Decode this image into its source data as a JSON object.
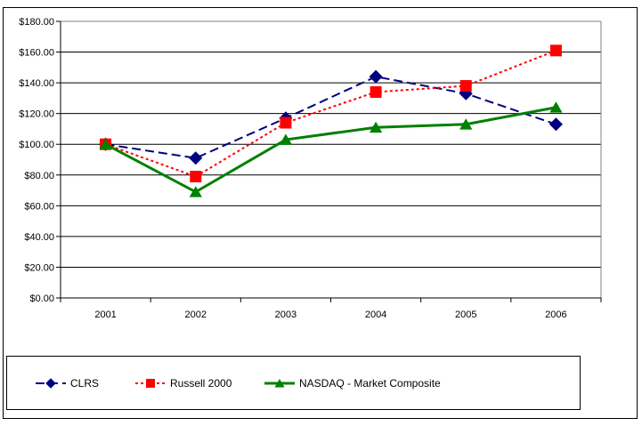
{
  "chart_data": {
    "type": "line",
    "title": "",
    "xlabel": "",
    "ylabel": "",
    "categories": [
      "2001",
      "2002",
      "2003",
      "2004",
      "2005",
      "2006"
    ],
    "series": [
      {
        "name": "CLRS",
        "color": "#000080",
        "marker": "diamond",
        "line_style": "dashed",
        "values": [
          100,
          91,
          117,
          144,
          133,
          113
        ]
      },
      {
        "name": "Russell 2000",
        "color": "#ff0000",
        "marker": "square",
        "line_style": "dotted",
        "values": [
          100,
          79,
          114,
          134,
          138,
          161
        ]
      },
      {
        "name": "NASDAQ - Market Composite",
        "color": "#008000",
        "marker": "triangle",
        "line_style": "solid",
        "values": [
          100,
          69,
          103,
          111,
          113,
          124
        ]
      }
    ],
    "y_axis": {
      "min": 0,
      "max": 180,
      "step": 20,
      "tick_labels": [
        "$0.00",
        "$20.00",
        "$40.00",
        "$60.00",
        "$80.00",
        "$100.00",
        "$120.00",
        "$140.00",
        "$160.00",
        "$180.00"
      ]
    },
    "grid": true,
    "grid_color": "#000000",
    "frame_color": "#808080",
    "axis_color": "#000000",
    "legend_position": "bottom"
  }
}
